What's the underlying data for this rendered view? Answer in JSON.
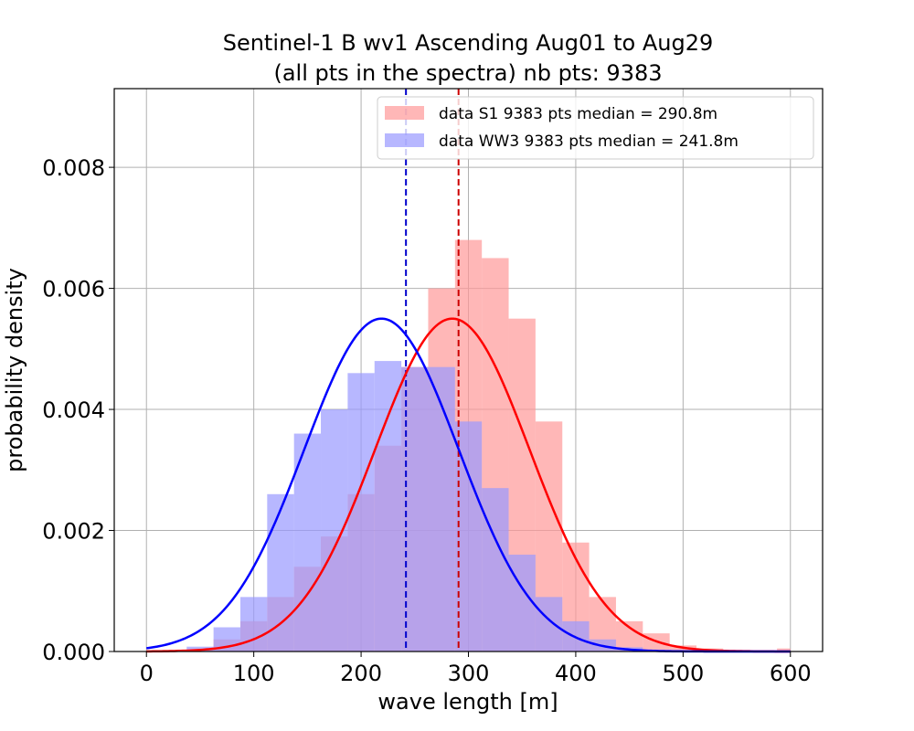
{
  "chart_data": {
    "type": "histogram",
    "title_line1": "Sentinel-1 B wv1 Ascending Aug01 to Aug29",
    "title_line2": "(all pts in the spectra) nb pts: 9383",
    "xlabel": "wave length [m]",
    "ylabel": "probability density",
    "xlim": [
      -30,
      630
    ],
    "ylim": [
      0,
      0.0093
    ],
    "xticks": [
      0,
      100,
      200,
      300,
      400,
      500,
      600
    ],
    "xtick_labels": [
      "0",
      "100",
      "200",
      "300",
      "400",
      "500",
      "600"
    ],
    "yticks": [
      0,
      0.002,
      0.004,
      0.006,
      0.008
    ],
    "ytick_labels": [
      "0.000",
      "0.002",
      "0.004",
      "0.006",
      "0.008"
    ],
    "grid": true,
    "legend_position": "top-right",
    "bins_range": [
      0,
      600
    ],
    "series": [
      {
        "name": "data S1 9383 pts median = 290.8m",
        "kind": "histogram",
        "color": "#ff9999",
        "fill_opacity": 0.7,
        "count": 9383,
        "median": 290.8,
        "bin_centers": [
          0,
          25,
          50,
          75,
          100,
          125,
          150,
          175,
          200,
          225,
          250,
          275,
          300,
          325,
          350,
          375,
          400,
          425,
          450,
          475,
          500,
          525,
          550,
          575,
          600
        ],
        "density": [
          0.0,
          0.0,
          3e-05,
          0.0002,
          0.0005,
          0.0009,
          0.0014,
          0.0019,
          0.0026,
          0.0034,
          0.0047,
          0.006,
          0.0068,
          0.0065,
          0.0055,
          0.0038,
          0.0018,
          0.0009,
          0.0005,
          0.0003,
          0.0001,
          5e-05,
          3e-05,
          2e-05,
          5e-05
        ]
      },
      {
        "name": "data WW3 9383 pts median = 241.8m",
        "kind": "histogram",
        "color": "#9999ff",
        "fill_opacity": 0.7,
        "count": 9383,
        "median": 241.8,
        "bin_centers": [
          0,
          25,
          50,
          75,
          100,
          125,
          150,
          175,
          200,
          225,
          250,
          275,
          300,
          325,
          350,
          375,
          400,
          425,
          450,
          475,
          500,
          525,
          550,
          575,
          600
        ],
        "density": [
          0.0,
          0.0,
          8e-05,
          0.0004,
          0.0009,
          0.0026,
          0.0036,
          0.004,
          0.0046,
          0.0048,
          0.0047,
          0.0047,
          0.0038,
          0.0027,
          0.0016,
          0.0009,
          0.0005,
          0.0002,
          7e-05,
          2e-05,
          0.0,
          0.0,
          0.0,
          0.0,
          0.0
        ]
      },
      {
        "name": "S1 gaussian fit",
        "kind": "line",
        "color": "#ff0000",
        "peak_x": 285,
        "peak_y": 0.0055,
        "sigma": 72
      },
      {
        "name": "WW3 gaussian fit",
        "kind": "line",
        "color": "#0000ff",
        "peak_x": 219,
        "peak_y": 0.0055,
        "sigma": 72
      }
    ],
    "median_lines": [
      {
        "x": 290.8,
        "color": "#cc0000"
      },
      {
        "x": 241.8,
        "color": "#0000cc"
      }
    ]
  }
}
